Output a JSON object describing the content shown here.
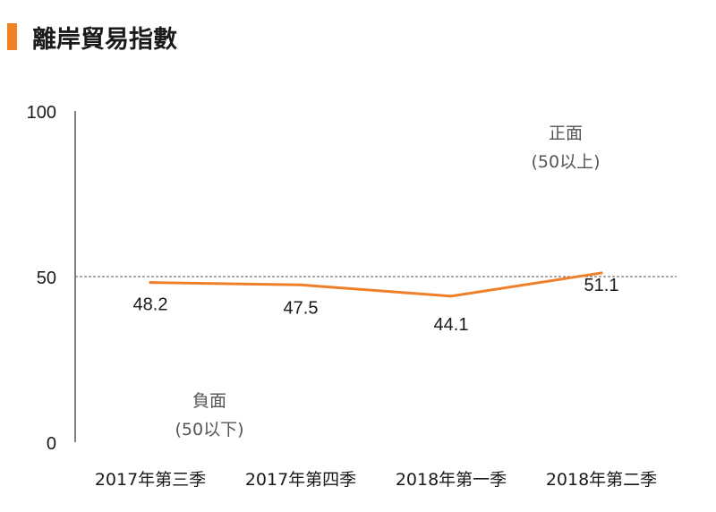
{
  "title": "離岸貿易指數",
  "colors": {
    "accent": "#f08224",
    "series": "#f07f2a",
    "text": "#1a1a1a",
    "annotation": "#555555",
    "axis": "#000000",
    "reference": "#555555"
  },
  "chart_data": {
    "type": "line",
    "categories": [
      "2017年第三季",
      "2017年第四季",
      "2018年第一季",
      "2018年第二季"
    ],
    "series": [
      {
        "values": [
          48.2,
          47.5,
          44.1,
          51.1
        ]
      }
    ],
    "data_labels": [
      "48.2",
      "47.5",
      "44.1",
      "51.1"
    ],
    "ylim": [
      0,
      100
    ],
    "yticks": [
      0,
      50,
      100
    ],
    "reference_line": 50,
    "grid": false,
    "annotations": {
      "positive": {
        "line1": "正面",
        "line2": "(50以上)"
      },
      "negative": {
        "line1": "負面",
        "line2": "(50以下)"
      }
    }
  }
}
